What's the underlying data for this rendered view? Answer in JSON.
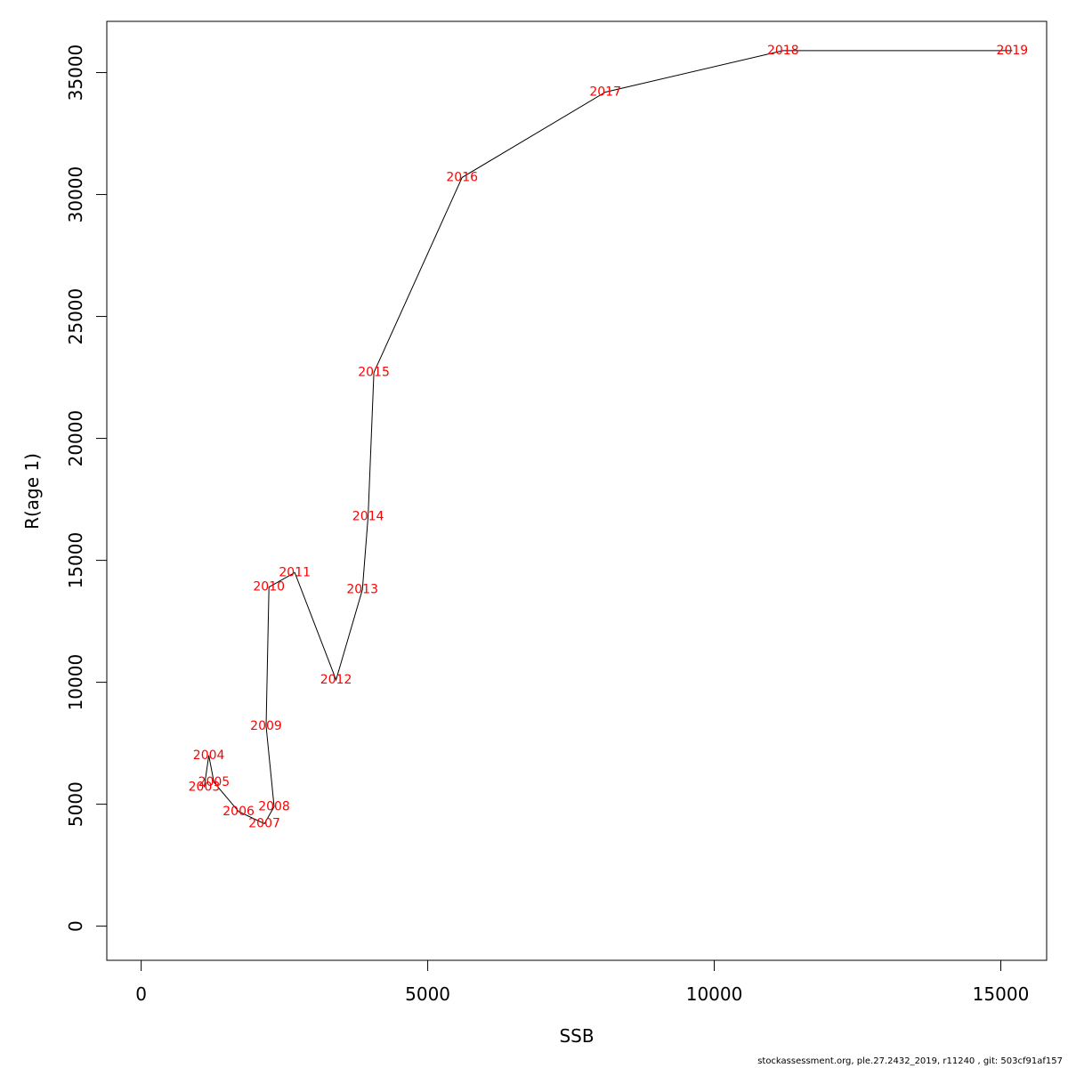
{
  "chart_data": {
    "type": "line",
    "title": "",
    "xlabel": "SSB",
    "ylabel": "R(age 1)",
    "xlim": [
      -600,
      15800
    ],
    "ylim": [
      -1400,
      37100
    ],
    "xticks": [
      0,
      5000,
      10000,
      15000
    ],
    "yticks": [
      0,
      5000,
      10000,
      15000,
      20000,
      25000,
      30000,
      35000
    ],
    "grid": false,
    "line_color": "#000000",
    "label_color": "#ff0000",
    "points": [
      {
        "year": "2003",
        "x": 1100,
        "y": 5700
      },
      {
        "year": "2004",
        "x": 1180,
        "y": 7000
      },
      {
        "year": "2005",
        "x": 1270,
        "y": 5900
      },
      {
        "year": "2006",
        "x": 1700,
        "y": 4700
      },
      {
        "year": "2007",
        "x": 2150,
        "y": 4200
      },
      {
        "year": "2008",
        "x": 2320,
        "y": 4900
      },
      {
        "year": "2009",
        "x": 2180,
        "y": 8200
      },
      {
        "year": "2010",
        "x": 2230,
        "y": 13900
      },
      {
        "year": "2011",
        "x": 2680,
        "y": 14500
      },
      {
        "year": "2012",
        "x": 3400,
        "y": 10100
      },
      {
        "year": "2013",
        "x": 3860,
        "y": 13800
      },
      {
        "year": "2014",
        "x": 3960,
        "y": 16800
      },
      {
        "year": "2015",
        "x": 4060,
        "y": 22700
      },
      {
        "year": "2016",
        "x": 5600,
        "y": 30700
      },
      {
        "year": "2017",
        "x": 8100,
        "y": 34200
      },
      {
        "year": "2018",
        "x": 11200,
        "y": 35900
      },
      {
        "year": "2019",
        "x": 15200,
        "y": 35900
      }
    ]
  },
  "footer": "stockassessment.org, ple.27.2432_2019, r11240 , git: 503cf91af157"
}
